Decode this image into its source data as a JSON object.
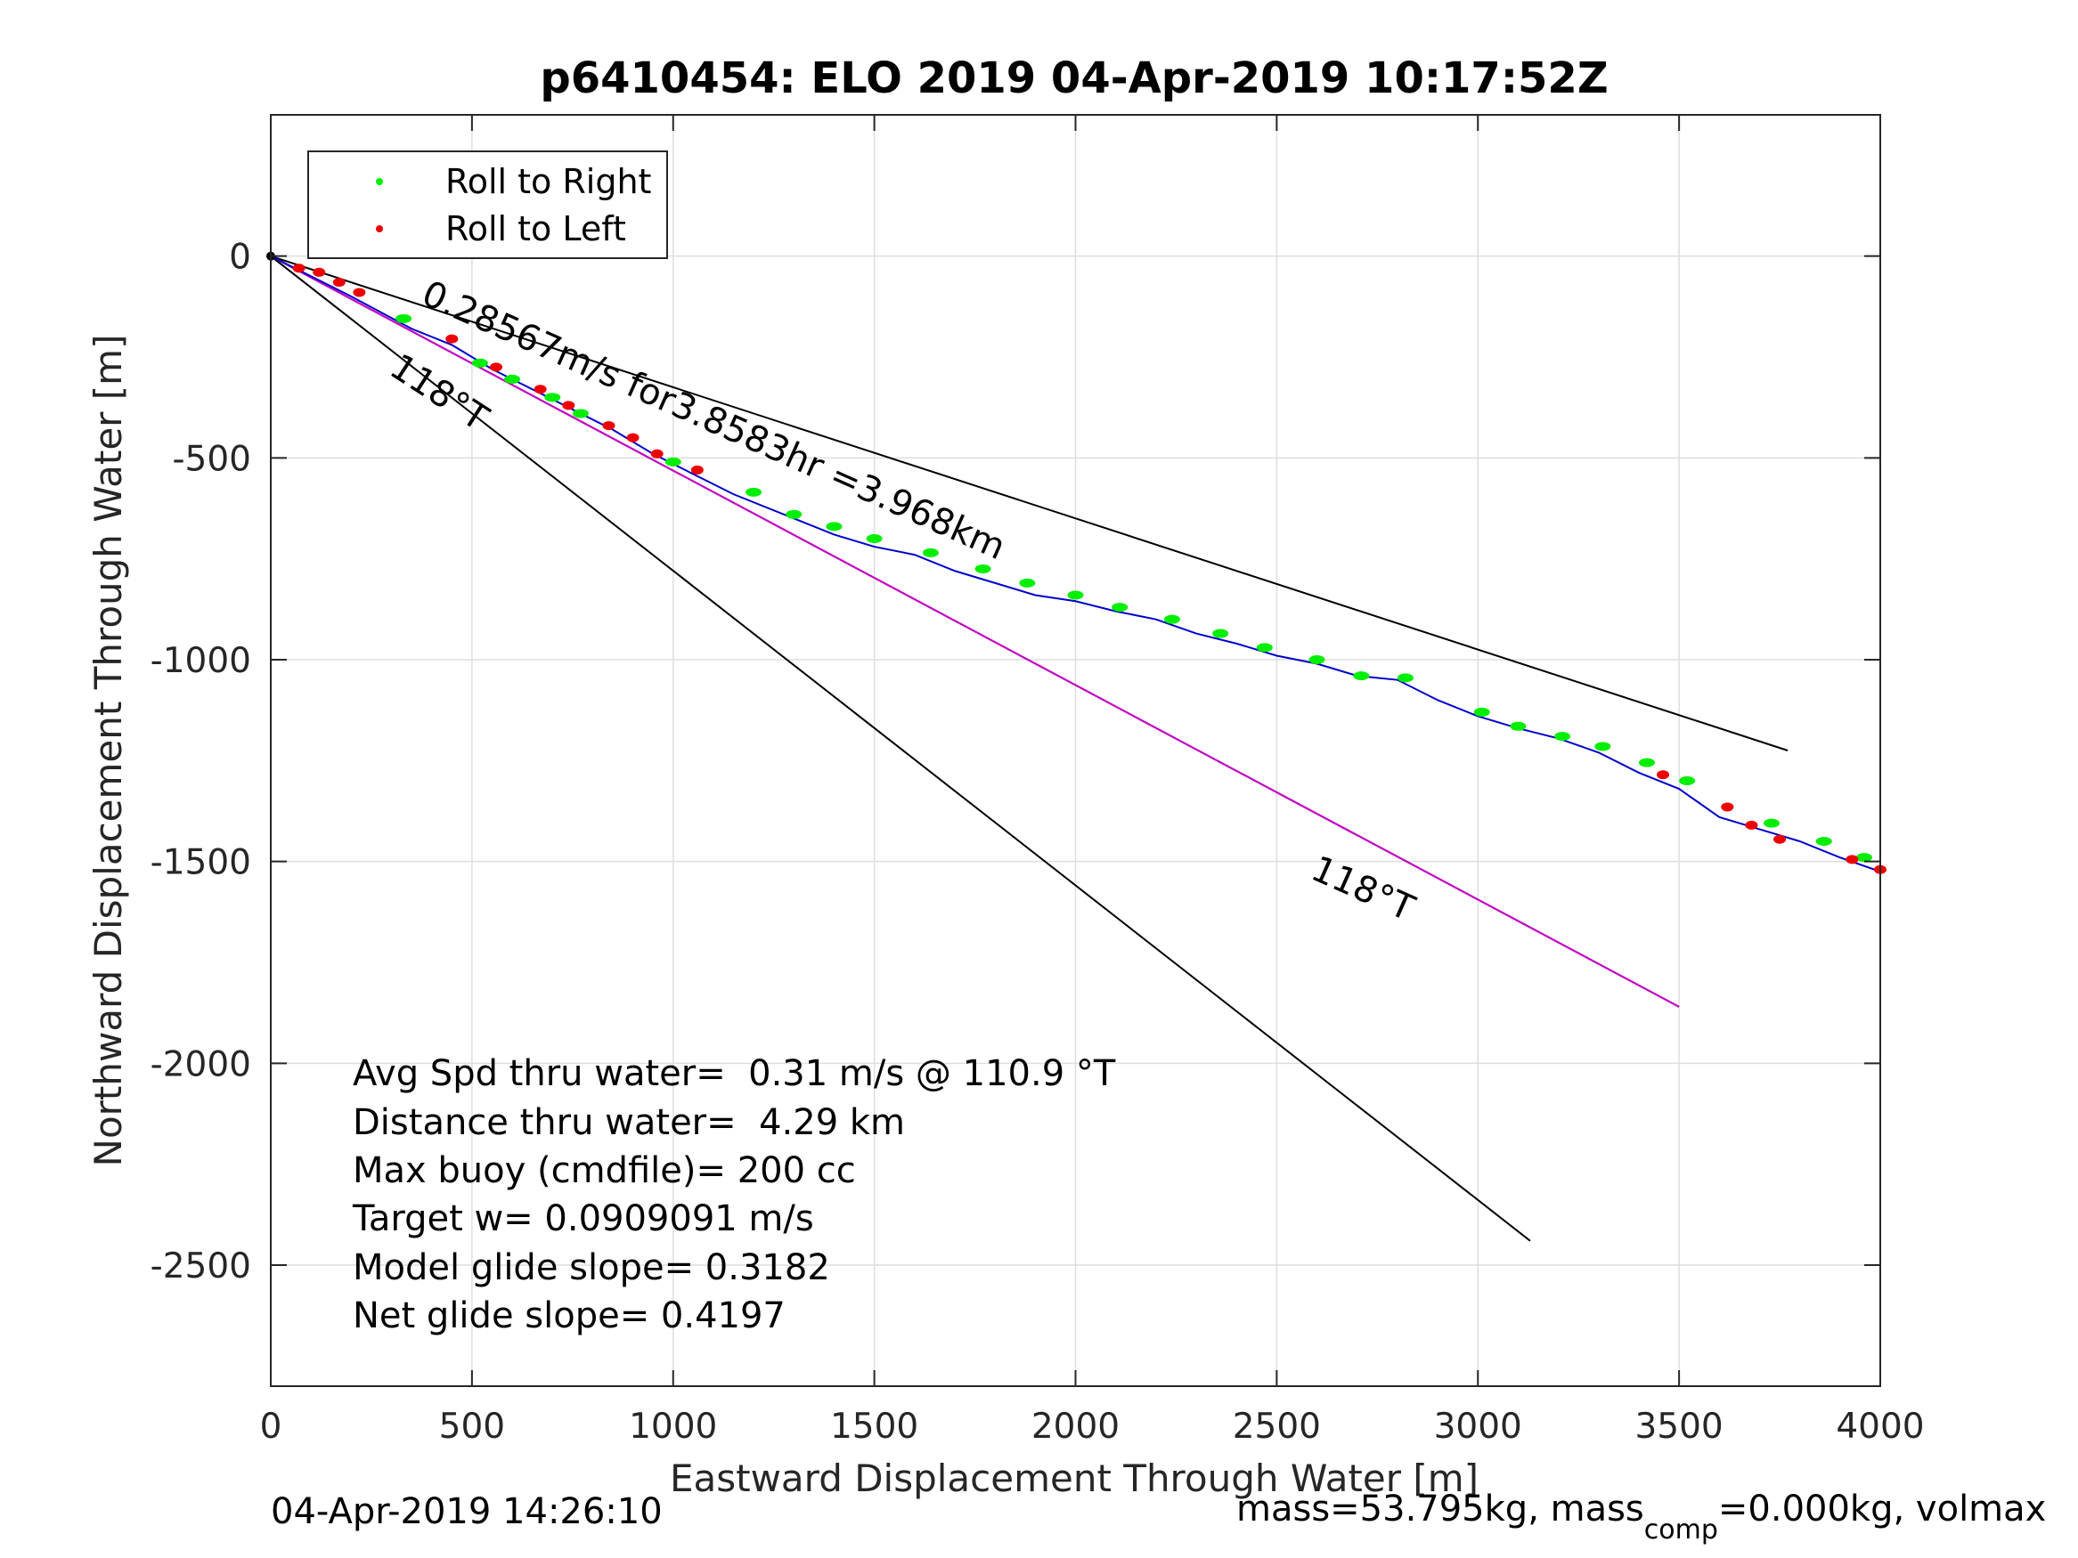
{
  "chart_data": {
    "type": "line",
    "title": "p6410454: ELO 2019 04-Apr-2019 10:17:52Z",
    "xlabel": "Eastward Displacement Through Water [m]",
    "ylabel": "Northward Displacement Through Water [m]",
    "xlim": [
      0,
      4000
    ],
    "ylim": [
      -2800,
      350
    ],
    "xticks": [
      0,
      500,
      1000,
      1500,
      2000,
      2500,
      3000,
      3500,
      4000
    ],
    "yticks": [
      0,
      -500,
      -1000,
      -1500,
      -2000,
      -2500
    ],
    "xtick_labels": [
      "0",
      "500",
      "1000",
      "1500",
      "2000",
      "2500",
      "3000",
      "3500",
      "4000"
    ],
    "ytick_labels": [
      "0",
      "-500",
      "-1000",
      "-1500",
      "-2000",
      "-2500"
    ],
    "grid": true,
    "legend_position": "top-left",
    "legend": [
      {
        "label": "Roll to Right",
        "color": "#00ee00"
      },
      {
        "label": "Roll to Left",
        "color": "#ee0000"
      }
    ],
    "track": {
      "color": "#0000cc",
      "x": [
        0,
        80,
        200,
        350,
        450,
        550,
        650,
        750,
        850,
        950,
        1050,
        1150,
        1300,
        1400,
        1500,
        1600,
        1700,
        1800,
        1900,
        2000,
        2100,
        2200,
        2300,
        2400,
        2500,
        2600,
        2700,
        2800,
        2900,
        3000,
        3100,
        3200,
        3300,
        3400,
        3500,
        3600,
        3700,
        3800,
        3900,
        4000
      ],
      "y": [
        0,
        -40,
        -100,
        -180,
        -220,
        -280,
        -330,
        -380,
        -430,
        -490,
        -540,
        -590,
        -650,
        -690,
        -720,
        -740,
        -780,
        -810,
        -840,
        -855,
        -880,
        -900,
        -935,
        -960,
        -990,
        -1010,
        -1040,
        -1050,
        -1100,
        -1140,
        -1170,
        -1195,
        -1230,
        -1280,
        -1320,
        -1390,
        -1420,
        -1450,
        -1490,
        -1525
      ]
    },
    "roll_right_points": {
      "x": [
        330,
        520,
        600,
        700,
        770,
        1000,
        1200,
        1300,
        1400,
        1500,
        1640,
        1770,
        1880,
        2000,
        2110,
        2240,
        2360,
        2470,
        2600,
        2710,
        2820,
        3010,
        3100,
        3210,
        3310,
        3420,
        3520,
        3730,
        3860,
        3960
      ],
      "y": [
        -155,
        -265,
        -305,
        -350,
        -390,
        -510,
        -585,
        -640,
        -670,
        -700,
        -735,
        -775,
        -810,
        -840,
        -870,
        -900,
        -935,
        -970,
        -1000,
        -1040,
        -1045,
        -1130,
        -1165,
        -1190,
        -1215,
        -1255,
        -1300,
        -1405,
        -1450,
        -1490
      ]
    },
    "roll_left_points": {
      "x": [
        70,
        120,
        170,
        220,
        450,
        560,
        670,
        740,
        840,
        900,
        960,
        1060,
        3460,
        3620,
        3680,
        3750,
        3930,
        4000
      ],
      "y": [
        -30,
        -40,
        -65,
        -90,
        -205,
        -275,
        -330,
        -370,
        -420,
        -450,
        -490,
        -530,
        -1285,
        -1365,
        -1410,
        -1445,
        -1495,
        -1520
      ]
    },
    "lines": [
      {
        "name": "upper-bound",
        "color": "#000000",
        "x": [
          0,
          3770
        ],
        "y": [
          0,
          -1225
        ]
      },
      {
        "name": "heading-118-inner",
        "color": "#000000",
        "x": [
          0,
          3500
        ],
        "y": [
          0,
          -1860
        ]
      },
      {
        "name": "heading-118-outer",
        "color": "#000000",
        "x": [
          0,
          3130
        ],
        "y": [
          0,
          -2440
        ]
      },
      {
        "name": "model-heading",
        "color": "#cc00cc",
        "x": [
          0,
          3500
        ],
        "y": [
          0,
          -1860
        ]
      }
    ],
    "annotations": [
      {
        "text": "0.28567m/s for3.8583hr =3.968km",
        "x": 370,
        "y": -115,
        "angle_deg": 24
      },
      {
        "text": "118°T",
        "x": 290,
        "y": -290,
        "angle_deg": 33
      },
      {
        "text": "118°T",
        "x": 2580,
        "y": -1540,
        "angle_deg": 24
      }
    ]
  },
  "stats": [
    "Avg Spd thru water=  0.31 m/s @ 110.9 °T",
    "Distance thru water=  4.29 km",
    "Max buoy (cmdfile)= 200 cc",
    "Target w= 0.0909091 m/s",
    "Model glide slope= 0.3182",
    "Net glide slope= 0.4197"
  ],
  "footer": {
    "timestamp": "04-Apr-2019 14:26:10",
    "mass_prefix": "mass=53.795kg, mass",
    "mass_sub": "comp",
    "mass_suffix": "=0.000kg, volmax"
  }
}
